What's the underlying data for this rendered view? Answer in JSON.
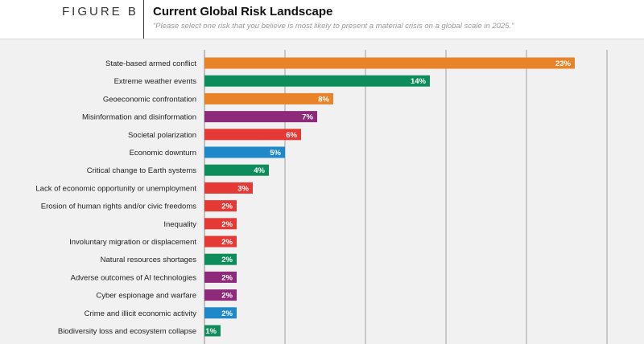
{
  "header": {
    "figure_label": "FIGURE B",
    "title": "Current Global Risk Landscape",
    "subtitle": "“Please select one risk that you believe is most likely to present a material crisis on a global scale in 2025.”"
  },
  "colors": {
    "orange": "#e8832a",
    "green": "#0e8c5b",
    "purple": "#8e2a7a",
    "red": "#e53935",
    "blue": "#1e88c9",
    "gridline": "#8a8a8a"
  },
  "chart_data": {
    "type": "bar",
    "orientation": "horizontal",
    "title": "Current Global Risk Landscape",
    "xlim": [
      0,
      25
    ],
    "grid": true,
    "categories": [
      "State-based armed conflict",
      "Extreme weather events",
      "Geoeconomic confrontation",
      "Misinformation and disinformation",
      "Societal polarization",
      "Economic downturn",
      "Critical change to Earth systems",
      "Lack of economic opportunity or unemployment",
      "Erosion of human rights and/or civic freedoms",
      "Inequality",
      "Involuntary migration or displacement",
      "Natural resources shortages",
      "Adverse outcomes of AI technologies",
      "Cyber espionage and warfare",
      "Crime and illicit economic activity",
      "Biodiversity loss and ecosystem collapse"
    ],
    "values": [
      23,
      14,
      8,
      7,
      6,
      5,
      4,
      3,
      2,
      2,
      2,
      2,
      2,
      2,
      2,
      1
    ],
    "value_labels": [
      "23%",
      "14%",
      "8%",
      "7%",
      "6%",
      "5%",
      "4%",
      "3%",
      "2%",
      "2%",
      "2%",
      "2%",
      "2%",
      "2%",
      "2%",
      "1%"
    ],
    "bar_colors": [
      "orange",
      "green",
      "orange",
      "purple",
      "red",
      "blue",
      "green",
      "red",
      "red",
      "red",
      "red",
      "green",
      "purple",
      "purple",
      "blue",
      "green"
    ]
  }
}
